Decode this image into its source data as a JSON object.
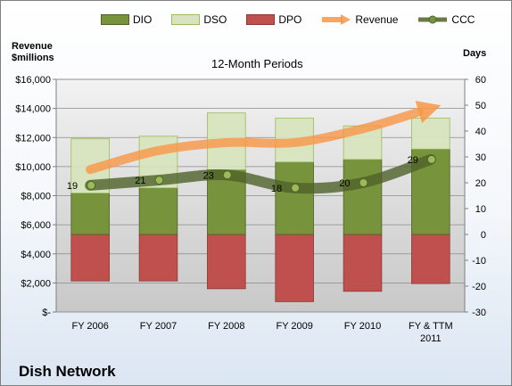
{
  "company": "Dish Network",
  "chart_data": {
    "type": "bar",
    "title": "12-Month Periods",
    "ylabel_left": [
      "Revenue",
      "$millions"
    ],
    "ylabel_right": "Days",
    "categories": [
      [
        "FY 2006"
      ],
      [
        "FY 2007"
      ],
      [
        "FY 2008"
      ],
      [
        "FY 2009"
      ],
      [
        "FY 2010"
      ],
      [
        "FY & TTM",
        "2011"
      ]
    ],
    "left_axis": {
      "ylim": [
        0,
        16000
      ],
      "ticks": [
        0,
        2000,
        4000,
        6000,
        8000,
        10000,
        12000,
        14000,
        16000
      ],
      "tick_labels": [
        "$-",
        "$2,000",
        "$4,000",
        "$6,000",
        "$8,000",
        "$10,000",
        "$12,000",
        "$14,000",
        "$16,000"
      ]
    },
    "right_axis": {
      "ylim": [
        -30,
        60
      ],
      "ticks": [
        -30,
        -20,
        -10,
        0,
        10,
        20,
        30,
        40,
        50,
        60
      ],
      "tick_labels": [
        "-30",
        "-20",
        "-10",
        "0",
        "10",
        "20",
        "30",
        "40",
        "50",
        "60"
      ]
    },
    "grid": true,
    "legend": [
      "DIO",
      "DSO",
      "DPO",
      "Revenue",
      "CCC"
    ],
    "legend_position": "top",
    "series": [
      {
        "name": "DIO",
        "type": "bar",
        "axis": "right",
        "values": [
          16,
          18,
          25,
          28,
          29,
          33
        ],
        "color": "#77933c"
      },
      {
        "name": "DSO",
        "type": "bar",
        "axis": "right",
        "values": [
          21,
          20,
          22,
          17,
          13,
          12
        ],
        "color": "#d7e4bd"
      },
      {
        "name": "DPO",
        "type": "bar",
        "axis": "right",
        "values": [
          -18,
          -18,
          -21,
          -26,
          -22,
          -19
        ],
        "color": "#c0504d"
      },
      {
        "name": "Revenue",
        "type": "line",
        "axis": "left",
        "values": [
          9800,
          11100,
          11650,
          11650,
          12600,
          14000
        ],
        "color": "#f79646"
      },
      {
        "name": "CCC",
        "type": "line",
        "axis": "right",
        "values": [
          19,
          21,
          23,
          18,
          20,
          29
        ],
        "labels": [
          "19",
          "21",
          "23",
          "18",
          "20",
          "29"
        ],
        "color": "#4f6228"
      }
    ]
  }
}
